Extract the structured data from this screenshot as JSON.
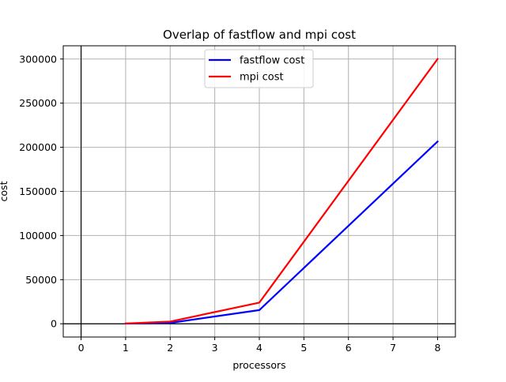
{
  "chart_data": {
    "type": "line",
    "title": "Overlap of fastflow and mpi cost",
    "xlabel": "processors",
    "ylabel": "cost",
    "xlim": [
      -0.4,
      8.4
    ],
    "ylim": [
      -15000,
      315000
    ],
    "xticks": [
      0,
      1,
      2,
      3,
      4,
      5,
      6,
      7,
      8
    ],
    "yticks": [
      0,
      50000,
      100000,
      150000,
      200000,
      250000,
      300000
    ],
    "grid": true,
    "reference_lines": {
      "x": 0,
      "y": 0
    },
    "legend_position": "top-center",
    "series": [
      {
        "name": "fastflow cost",
        "color": "#0000ff",
        "x": [
          1,
          2,
          4,
          8
        ],
        "y": [
          200,
          1000,
          15500,
          206500
        ]
      },
      {
        "name": "mpi cost",
        "color": "#ff0000",
        "x": [
          1,
          2,
          4,
          8
        ],
        "y": [
          300,
          2500,
          24000,
          300000
        ]
      }
    ]
  }
}
